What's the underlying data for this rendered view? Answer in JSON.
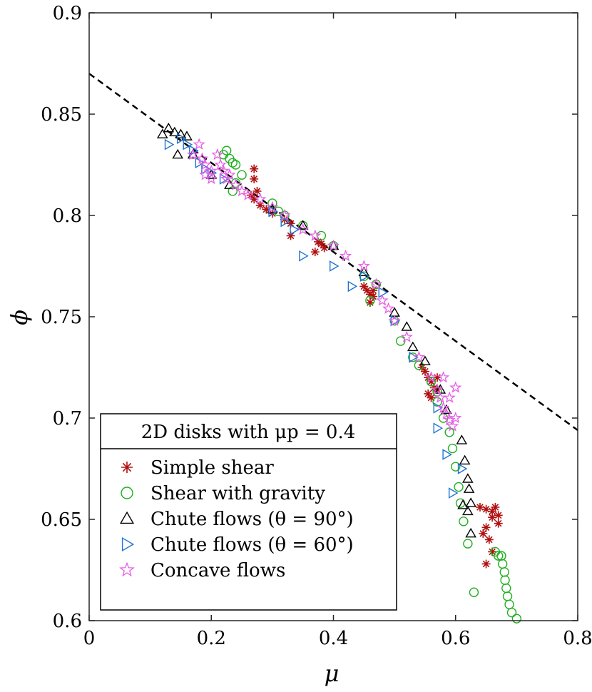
{
  "chart_data": {
    "type": "scatter",
    "xlabel": "μ",
    "ylabel": "ϕ",
    "xlim": [
      0,
      0.8
    ],
    "ylim": [
      0.6,
      0.9
    ],
    "xticks": [
      "0",
      "0.2",
      "0.4",
      "0.6",
      "0.8"
    ],
    "yticks": [
      "0.6",
      "0.65",
      "0.7",
      "0.75",
      "0.8",
      "0.85",
      "0.9"
    ],
    "grid": false,
    "legend_position": "bottom-left",
    "legend_title": "2D disks with μp = 0.4",
    "fit_line": {
      "style": "dashed",
      "color": "#000000",
      "points": [
        [
          0,
          0.87
        ],
        [
          0.8,
          0.694
        ]
      ]
    },
    "series": [
      {
        "name": "Simple shear",
        "marker": "asterisk",
        "color": "#b01010",
        "points": [
          [
            0.27,
            0.823
          ],
          [
            0.27,
            0.818
          ],
          [
            0.275,
            0.812
          ],
          [
            0.27,
            0.808
          ],
          [
            0.28,
            0.805
          ],
          [
            0.265,
            0.81
          ],
          [
            0.29,
            0.803
          ],
          [
            0.3,
            0.801
          ],
          [
            0.32,
            0.798
          ],
          [
            0.33,
            0.796
          ],
          [
            0.33,
            0.79
          ],
          [
            0.375,
            0.787
          ],
          [
            0.38,
            0.786
          ],
          [
            0.385,
            0.784
          ],
          [
            0.37,
            0.782
          ],
          [
            0.45,
            0.765
          ],
          [
            0.455,
            0.763
          ],
          [
            0.46,
            0.761
          ],
          [
            0.46,
            0.757
          ],
          [
            0.465,
            0.763
          ],
          [
            0.465,
            0.76
          ],
          [
            0.545,
            0.725
          ],
          [
            0.55,
            0.723
          ],
          [
            0.555,
            0.72
          ],
          [
            0.56,
            0.718
          ],
          [
            0.565,
            0.715
          ],
          [
            0.57,
            0.72
          ],
          [
            0.56,
            0.71
          ],
          [
            0.555,
            0.712
          ],
          [
            0.57,
            0.714
          ],
          [
            0.64,
            0.656
          ],
          [
            0.65,
            0.655
          ],
          [
            0.66,
            0.654
          ],
          [
            0.665,
            0.656
          ],
          [
            0.66,
            0.651
          ],
          [
            0.67,
            0.652
          ],
          [
            0.67,
            0.648
          ],
          [
            0.65,
            0.646
          ],
          [
            0.645,
            0.643
          ],
          [
            0.655,
            0.64
          ],
          [
            0.66,
            0.634
          ],
          [
            0.65,
            0.628
          ]
        ]
      },
      {
        "name": "Shear with gravity",
        "marker": "circle",
        "color": "#20b020",
        "points": [
          [
            0.22,
            0.83
          ],
          [
            0.225,
            0.832
          ],
          [
            0.23,
            0.828
          ],
          [
            0.235,
            0.826
          ],
          [
            0.24,
            0.825
          ],
          [
            0.25,
            0.82
          ],
          [
            0.24,
            0.816
          ],
          [
            0.235,
            0.812
          ],
          [
            0.3,
            0.806
          ],
          [
            0.31,
            0.802
          ],
          [
            0.32,
            0.8
          ],
          [
            0.35,
            0.795
          ],
          [
            0.38,
            0.79
          ],
          [
            0.4,
            0.785
          ],
          [
            0.45,
            0.77
          ],
          [
            0.47,
            0.766
          ],
          [
            0.46,
            0.758
          ],
          [
            0.5,
            0.748
          ],
          [
            0.51,
            0.738
          ],
          [
            0.53,
            0.73
          ],
          [
            0.54,
            0.726
          ],
          [
            0.56,
            0.718
          ],
          [
            0.57,
            0.713
          ],
          [
            0.57,
            0.708
          ],
          [
            0.58,
            0.7
          ],
          [
            0.59,
            0.693
          ],
          [
            0.595,
            0.685
          ],
          [
            0.6,
            0.676
          ],
          [
            0.605,
            0.666
          ],
          [
            0.608,
            0.658
          ],
          [
            0.613,
            0.649
          ],
          [
            0.62,
            0.638
          ],
          [
            0.63,
            0.614
          ],
          [
            0.665,
            0.634
          ],
          [
            0.67,
            0.632
          ],
          [
            0.675,
            0.632
          ],
          [
            0.677,
            0.628
          ],
          [
            0.68,
            0.624
          ],
          [
            0.681,
            0.62
          ],
          [
            0.683,
            0.616
          ],
          [
            0.685,
            0.612
          ],
          [
            0.688,
            0.608
          ],
          [
            0.692,
            0.604
          ],
          [
            0.7,
            0.601
          ]
        ]
      },
      {
        "name": "Chute flows (θ = 90°)",
        "marker": "triangle-up",
        "color": "#000000",
        "points": [
          [
            0.12,
            0.84
          ],
          [
            0.13,
            0.843
          ],
          [
            0.14,
            0.841
          ],
          [
            0.15,
            0.84
          ],
          [
            0.16,
            0.839
          ],
          [
            0.145,
            0.83
          ],
          [
            0.17,
            0.83
          ],
          [
            0.2,
            0.82
          ],
          [
            0.23,
            0.815
          ],
          [
            0.3,
            0.803
          ],
          [
            0.35,
            0.795
          ],
          [
            0.4,
            0.785
          ],
          [
            0.45,
            0.772
          ],
          [
            0.5,
            0.752
          ],
          [
            0.52,
            0.745
          ],
          [
            0.53,
            0.735
          ],
          [
            0.55,
            0.728
          ],
          [
            0.575,
            0.714
          ],
          [
            0.585,
            0.704
          ],
          [
            0.61,
            0.689
          ],
          [
            0.615,
            0.679
          ],
          [
            0.62,
            0.67
          ],
          [
            0.622,
            0.665
          ],
          [
            0.625,
            0.658
          ],
          [
            0.62,
            0.654
          ],
          [
            0.625,
            0.643
          ],
          [
            0.612,
            0.657
          ]
        ]
      },
      {
        "name": "Chute flows (θ = 60°)",
        "marker": "triangle-right",
        "color": "#1f73d2",
        "points": [
          [
            0.13,
            0.835
          ],
          [
            0.15,
            0.838
          ],
          [
            0.16,
            0.835
          ],
          [
            0.17,
            0.832
          ],
          [
            0.18,
            0.826
          ],
          [
            0.19,
            0.823
          ],
          [
            0.2,
            0.821
          ],
          [
            0.22,
            0.818
          ],
          [
            0.3,
            0.802
          ],
          [
            0.32,
            0.797
          ],
          [
            0.335,
            0.793
          ],
          [
            0.35,
            0.78
          ],
          [
            0.4,
            0.775
          ],
          [
            0.45,
            0.77
          ],
          [
            0.43,
            0.765
          ],
          [
            0.48,
            0.762
          ],
          [
            0.5,
            0.748
          ],
          [
            0.53,
            0.73
          ],
          [
            0.57,
            0.705
          ],
          [
            0.57,
            0.695
          ],
          [
            0.585,
            0.682
          ],
          [
            0.595,
            0.663
          ],
          [
            0.61,
            0.675
          ]
        ]
      },
      {
        "name": "Concave flows",
        "marker": "star",
        "color": "#e65fe6",
        "points": [
          [
            0.17,
            0.83
          ],
          [
            0.18,
            0.835
          ],
          [
            0.185,
            0.828
          ],
          [
            0.19,
            0.825
          ],
          [
            0.2,
            0.822
          ],
          [
            0.21,
            0.83
          ],
          [
            0.215,
            0.825
          ],
          [
            0.22,
            0.822
          ],
          [
            0.225,
            0.818
          ],
          [
            0.2,
            0.818
          ],
          [
            0.19,
            0.82
          ],
          [
            0.23,
            0.82
          ],
          [
            0.24,
            0.815
          ],
          [
            0.25,
            0.812
          ],
          [
            0.26,
            0.81
          ],
          [
            0.28,
            0.808
          ],
          [
            0.3,
            0.804
          ],
          [
            0.32,
            0.8
          ],
          [
            0.35,
            0.793
          ],
          [
            0.37,
            0.79
          ],
          [
            0.4,
            0.785
          ],
          [
            0.42,
            0.78
          ],
          [
            0.45,
            0.775
          ],
          [
            0.47,
            0.766
          ],
          [
            0.48,
            0.758
          ],
          [
            0.49,
            0.754
          ],
          [
            0.5,
            0.748
          ],
          [
            0.52,
            0.74
          ],
          [
            0.54,
            0.73
          ],
          [
            0.56,
            0.72
          ],
          [
            0.57,
            0.714
          ],
          [
            0.575,
            0.71
          ],
          [
            0.58,
            0.705
          ],
          [
            0.585,
            0.702
          ],
          [
            0.59,
            0.699
          ],
          [
            0.595,
            0.696
          ],
          [
            0.6,
            0.7
          ],
          [
            0.59,
            0.71
          ],
          [
            0.6,
            0.715
          ],
          [
            0.58,
            0.72
          ]
        ]
      }
    ]
  }
}
